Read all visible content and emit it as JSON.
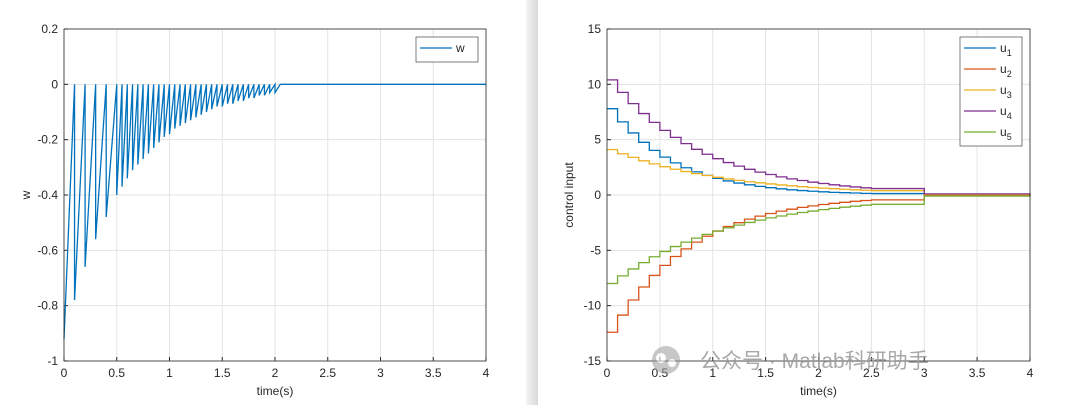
{
  "chart_data": [
    {
      "type": "line",
      "xlabel": "time(s)",
      "ylabel": "w",
      "xlim": [
        0,
        4
      ],
      "ylim": [
        -1,
        0.2
      ],
      "xticks": [
        0,
        0.5,
        1,
        1.5,
        2,
        2.5,
        3,
        3.5,
        4
      ],
      "yticks": [
        -1,
        -0.8,
        -0.6,
        -0.4,
        -0.2,
        0,
        0.2
      ],
      "grid": true,
      "legend": "upper right",
      "step": false,
      "x": [
        0,
        0.1,
        0.1,
        0.2,
        0.2,
        0.3,
        0.3,
        0.4,
        0.4,
        0.5,
        0.5,
        0.55,
        0.55,
        0.6,
        0.6,
        0.65,
        0.65,
        0.7,
        0.7,
        0.75,
        0.75,
        0.8,
        0.8,
        0.85,
        0.85,
        0.9,
        0.9,
        0.95,
        0.95,
        1,
        1,
        1.05,
        1.05,
        1.1,
        1.1,
        1.15,
        1.15,
        1.2,
        1.2,
        1.25,
        1.25,
        1.3,
        1.3,
        1.35,
        1.35,
        1.4,
        1.4,
        1.45,
        1.45,
        1.5,
        1.5,
        1.55,
        1.55,
        1.6,
        1.6,
        1.65,
        1.65,
        1.7,
        1.7,
        1.75,
        1.75,
        1.8,
        1.8,
        1.85,
        1.85,
        1.9,
        1.9,
        1.95,
        1.95,
        2,
        2,
        2.05,
        4
      ],
      "series": [
        {
          "name": "w",
          "color": "#0072BD",
          "values": [
            -0.92,
            0,
            -0.78,
            0,
            -0.66,
            0,
            -0.56,
            0,
            -0.48,
            0,
            -0.4,
            0,
            -0.37,
            0,
            -0.34,
            0,
            -0.31,
            0,
            -0.29,
            0,
            -0.27,
            0,
            -0.25,
            0,
            -0.23,
            0,
            -0.21,
            0,
            -0.19,
            0,
            -0.18,
            0,
            -0.16,
            0,
            -0.15,
            0,
            -0.14,
            0,
            -0.13,
            0,
            -0.12,
            0,
            -0.11,
            0,
            -0.1,
            0,
            -0.09,
            0,
            -0.08,
            0,
            -0.08,
            0,
            -0.07,
            0,
            -0.07,
            0,
            -0.06,
            0,
            -0.06,
            0,
            -0.05,
            0,
            -0.05,
            0,
            -0.04,
            0,
            -0.04,
            0,
            -0.03,
            0,
            -0.03,
            0,
            0
          ]
        }
      ]
    },
    {
      "type": "line",
      "xlabel": "time(s)",
      "ylabel": "control input",
      "xlim": [
        0,
        4
      ],
      "ylim": [
        -15,
        15
      ],
      "xticks": [
        0,
        0.5,
        1,
        1.5,
        2,
        2.5,
        3,
        3.5,
        4
      ],
      "yticks": [
        -15,
        -10,
        -5,
        0,
        5,
        10,
        15
      ],
      "grid": true,
      "legend": "upper right",
      "step": true,
      "x": [
        0,
        0.1,
        0.2,
        0.3,
        0.4,
        0.5,
        0.6,
        0.7,
        0.8,
        0.9,
        1,
        1.1,
        1.2,
        1.3,
        1.4,
        1.5,
        1.6,
        1.7,
        1.8,
        1.9,
        2,
        2.1,
        2.2,
        2.3,
        2.4,
        2.5,
        3,
        4
      ],
      "series": [
        {
          "name": "u1",
          "color": "#0072BD",
          "values": [
            7.8,
            6.61,
            5.61,
            4.76,
            4.03,
            3.42,
            2.9,
            2.46,
            2.09,
            1.77,
            1.5,
            1.27,
            1.08,
            0.92,
            0.78,
            0.66,
            0.56,
            0.47,
            0.4,
            0.34,
            0.29,
            0.24,
            0.21,
            0.18,
            0.15,
            0.13,
            0.02,
            0
          ]
        },
        {
          "name": "u2",
          "color": "#D95319",
          "values": [
            -12.4,
            -10.85,
            -9.49,
            -8.31,
            -7.27,
            -6.36,
            -5.56,
            -4.87,
            -4.26,
            -3.73,
            -3.26,
            -2.85,
            -2.5,
            -2.18,
            -1.91,
            -1.67,
            -1.46,
            -1.28,
            -1.12,
            -0.98,
            -0.86,
            -0.75,
            -0.66,
            -0.57,
            -0.5,
            -0.44,
            -0.05,
            0
          ]
        },
        {
          "name": "u3",
          "color": "#EDB120",
          "values": [
            4.1,
            3.73,
            3.4,
            3.09,
            2.81,
            2.56,
            2.33,
            2.12,
            1.93,
            1.76,
            1.6,
            1.45,
            1.32,
            1.2,
            1.1,
            1.0,
            0.91,
            0.83,
            0.75,
            0.68,
            0.62,
            0.57,
            0.52,
            0.47,
            0.43,
            0.39,
            0.05,
            0
          ]
        },
        {
          "name": "u4",
          "color": "#7E2F8E",
          "values": [
            10.4,
            9.27,
            8.26,
            7.36,
            6.56,
            5.84,
            5.21,
            4.64,
            4.13,
            3.68,
            3.28,
            2.93,
            2.61,
            2.32,
            2.07,
            1.85,
            1.64,
            1.46,
            1.31,
            1.16,
            1.04,
            0.92,
            0.82,
            0.73,
            0.65,
            0.58,
            0.1,
            0
          ]
        },
        {
          "name": "u5",
          "color": "#77AC30",
          "values": [
            -8,
            -7.31,
            -6.68,
            -6.11,
            -5.58,
            -5.1,
            -4.66,
            -4.26,
            -3.9,
            -3.56,
            -3.25,
            -2.97,
            -2.72,
            -2.48,
            -2.27,
            -2.07,
            -1.9,
            -1.73,
            -1.58,
            -1.45,
            -1.32,
            -1.21,
            -1.1,
            -1.01,
            -0.92,
            -0.84,
            -0.1,
            0
          ]
        }
      ]
    }
  ],
  "watermark": "公众号 · Matlab科研助手"
}
